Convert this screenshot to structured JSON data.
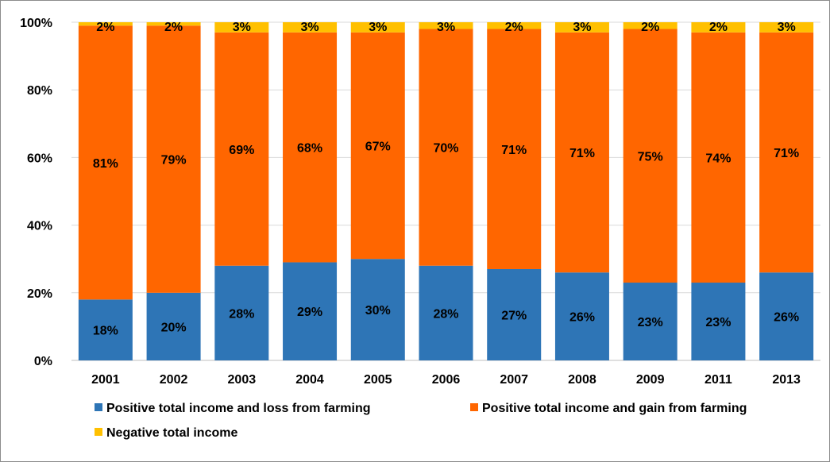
{
  "chart_data": {
    "type": "bar",
    "stacked": true,
    "percent": true,
    "categories": [
      "2001",
      "2002",
      "2003",
      "2004",
      "2005",
      "2006",
      "2007",
      "2008",
      "2009",
      "2011",
      "2013"
    ],
    "series": [
      {
        "name": "Positive total income and loss from farming",
        "color": "#2e75b6",
        "values": [
          18,
          20,
          28,
          29,
          30,
          28,
          27,
          26,
          23,
          23,
          26
        ],
        "labels": [
          "18%",
          "20%",
          "28%",
          "29%",
          "30%",
          "28%",
          "27%",
          "26%",
          "23%",
          "23%",
          "26%"
        ]
      },
      {
        "name": "Positive total income and gain from farming",
        "color": "#ff6600",
        "values": [
          81,
          79,
          69,
          68,
          67,
          70,
          71,
          71,
          75,
          74,
          71
        ],
        "labels": [
          "81%",
          "79%",
          "69%",
          "68%",
          "67%",
          "70%",
          "71%",
          "71%",
          "75%",
          "74%",
          "71%"
        ]
      },
      {
        "name": "Negative total income",
        "color": "#ffc000",
        "values": [
          2,
          2,
          3,
          3,
          3,
          3,
          2,
          3,
          2,
          2,
          3
        ],
        "labels": [
          "2%",
          "2%",
          "3%",
          "3%",
          "3%",
          "3%",
          "2%",
          "3%",
          "2%",
          "2%",
          "3%"
        ]
      }
    ],
    "yticks": [
      "0%",
      "20%",
      "40%",
      "60%",
      "80%",
      "100%"
    ],
    "ylim": [
      0,
      100
    ],
    "grid": true,
    "legend_position": "bottom",
    "title": "",
    "xlabel": "",
    "ylabel": ""
  }
}
